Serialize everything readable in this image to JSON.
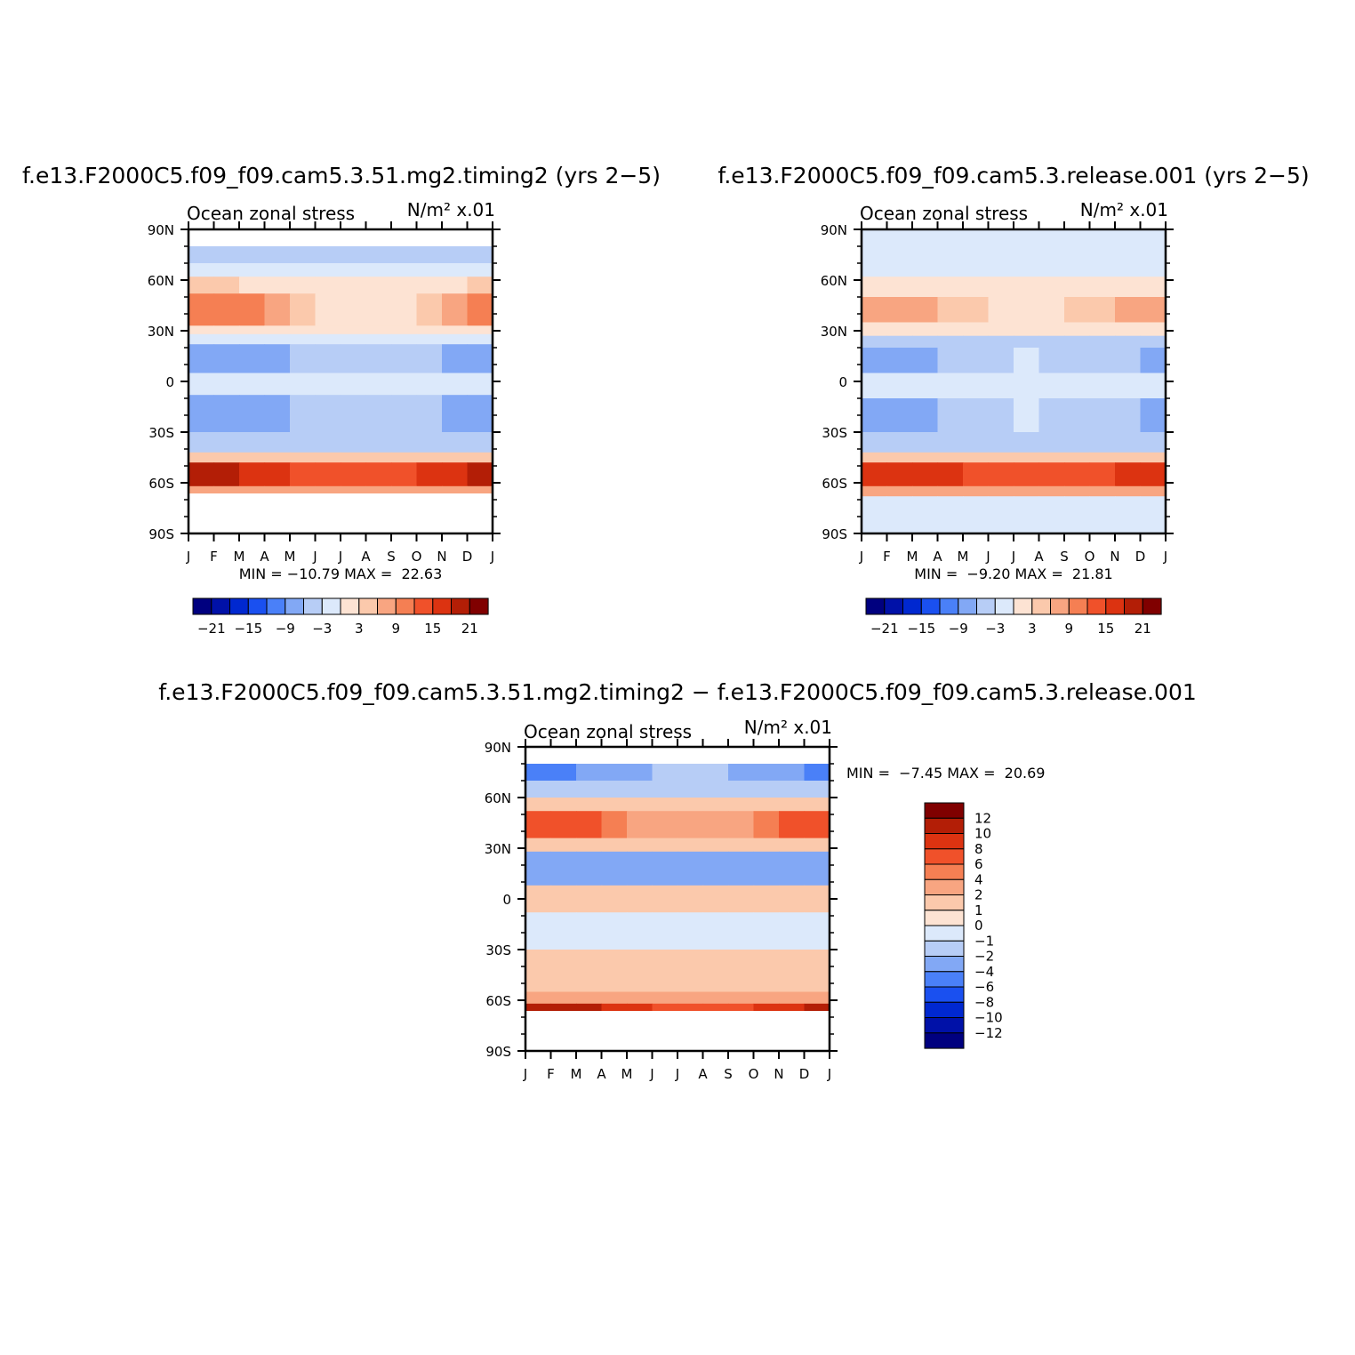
{
  "colors": {
    "abs_scale": [
      "#00007f",
      "#0011a8",
      "#0028d0",
      "#1a50f0",
      "#4a80f8",
      "#82a8f5",
      "#b7cdf6",
      "#dce9fb",
      "#fde3d3",
      "#fbc9ac",
      "#f8a581",
      "#f57f53",
      "#f0512a",
      "#dc3311",
      "#b31e06",
      "#800000"
    ],
    "diff_scale": [
      "#800000",
      "#b31e06",
      "#dc3311",
      "#f0512a",
      "#f57f53",
      "#f8a581",
      "#fbc9ac",
      "#fde3d3",
      "#dce9fb",
      "#b7cdf6",
      "#82a8f5",
      "#4a80f8",
      "#1a50f0",
      "#0028d0",
      "#0011a8",
      "#00007f"
    ]
  },
  "panels": [
    {
      "title": "f.e13.F2000C5.f09_f09.cam5.3.51.mg2.timing2 (yrs 2−5)",
      "left_label": "Ocean zonal stress",
      "right_label": "N/m² x.01",
      "stats": "MIN = −10.79 MAX =  22.63"
    },
    {
      "title": "f.e13.F2000C5.f09_f09.cam5.3.release.001 (yrs 2−5)",
      "left_label": "Ocean zonal stress",
      "right_label": "N/m² x.01",
      "stats": "MIN =  −9.20 MAX =  21.81"
    },
    {
      "title": "f.e13.F2000C5.f09_f09.cam5.3.51.mg2.timing2 − f.e13.F2000C5.f09_f09.cam5.3.release.001",
      "left_label": "Ocean zonal stress",
      "right_label": "N/m² x.01",
      "stats": "MIN =  −7.45 MAX =  20.69"
    }
  ],
  "chart_data": [
    {
      "type": "heatmap",
      "title": "f.e13.F2000C5.f09_f09.cam5.3.51.mg2.timing2 (yrs 2−5)",
      "x_ticks": [
        "J",
        "F",
        "M",
        "A",
        "M",
        "J",
        "J",
        "A",
        "S",
        "O",
        "N",
        "D",
        "J"
      ],
      "y_ticks": [
        "90N",
        "60N",
        "30N",
        "0",
        "30S",
        "60S",
        "90S"
      ],
      "ylim": [
        -90,
        90
      ],
      "min": -10.79,
      "max": 22.63,
      "colorbar_labels": [
        "−21",
        "−15",
        "−9",
        "−3",
        "3",
        "9",
        "15",
        "21"
      ],
      "bands": [
        {
          "lat": [
            70,
            80
          ],
          "value": -4,
          "seasonal": 0
        },
        {
          "lat": [
            62,
            70
          ],
          "value": -1,
          "seasonal": 1
        },
        {
          "lat": [
            52,
            62
          ],
          "value": 2,
          "seasonal": 2
        },
        {
          "lat": [
            33,
            52
          ],
          "value": 6,
          "seasonal": 8
        },
        {
          "lat": [
            28,
            33
          ],
          "value": 1,
          "seasonal": 0
        },
        {
          "lat": [
            22,
            28
          ],
          "value": -2,
          "seasonal": 0
        },
        {
          "lat": [
            5,
            22
          ],
          "value": -6,
          "seasonal": -4
        },
        {
          "lat": [
            -8,
            5
          ],
          "value": -1,
          "seasonal": 0
        },
        {
          "lat": [
            -30,
            -8
          ],
          "value": -6,
          "seasonal": -4
        },
        {
          "lat": [
            -42,
            -30
          ],
          "value": -3,
          "seasonal": 0
        },
        {
          "lat": [
            -48,
            -42
          ],
          "value": 6,
          "seasonal": 0
        },
        {
          "lat": [
            -62,
            -48
          ],
          "value": 16,
          "seasonal": 4
        },
        {
          "lat": [
            -66,
            -62
          ],
          "value": 8,
          "seasonal": 0
        }
      ]
    },
    {
      "type": "heatmap",
      "title": "f.e13.F2000C5.f09_f09.cam5.3.release.001 (yrs 2−5)",
      "x_ticks": [
        "J",
        "F",
        "M",
        "A",
        "M",
        "J",
        "J",
        "A",
        "S",
        "O",
        "N",
        "D",
        "J"
      ],
      "y_ticks": [
        "90N",
        "60N",
        "30N",
        "0",
        "30S",
        "60S",
        "90S"
      ],
      "ylim": [
        -90,
        90
      ],
      "min": -9.2,
      "max": 21.81,
      "colorbar_labels": [
        "−21",
        "−15",
        "−9",
        "−3",
        "3",
        "9",
        "15",
        "21"
      ],
      "bands": [
        {
          "lat": [
            75,
            90
          ],
          "value": -1,
          "seasonal": 0
        },
        {
          "lat": [
            62,
            75
          ],
          "value": -2,
          "seasonal": 0
        },
        {
          "lat": [
            50,
            62
          ],
          "value": 2,
          "seasonal": 1
        },
        {
          "lat": [
            35,
            50
          ],
          "value": 5,
          "seasonal": 4
        },
        {
          "lat": [
            27,
            35
          ],
          "value": 1,
          "seasonal": 0
        },
        {
          "lat": [
            20,
            27
          ],
          "value": -3,
          "seasonal": 0
        },
        {
          "lat": [
            5,
            20
          ],
          "value": -5,
          "seasonal": -3
        },
        {
          "lat": [
            -10,
            5
          ],
          "value": -1,
          "seasonal": 0
        },
        {
          "lat": [
            -30,
            -10
          ],
          "value": -5,
          "seasonal": -3
        },
        {
          "lat": [
            -42,
            -30
          ],
          "value": -3,
          "seasonal": 0
        },
        {
          "lat": [
            -48,
            -42
          ],
          "value": 6,
          "seasonal": 0
        },
        {
          "lat": [
            -62,
            -48
          ],
          "value": 15,
          "seasonal": 4
        },
        {
          "lat": [
            -68,
            -62
          ],
          "value": 7,
          "seasonal": 0
        },
        {
          "lat": [
            -90,
            -68
          ],
          "value": -1,
          "seasonal": 0
        }
      ]
    },
    {
      "type": "heatmap",
      "title": "f.e13.F2000C5.f09_f09.cam5.3.51.mg2.timing2 − f.e13.F2000C5.f09_f09.cam5.3.release.001",
      "x_ticks": [
        "J",
        "F",
        "M",
        "A",
        "M",
        "J",
        "J",
        "A",
        "S",
        "O",
        "N",
        "D",
        "J"
      ],
      "y_ticks": [
        "90N",
        "60N",
        "30N",
        "0",
        "30S",
        "60S",
        "90S"
      ],
      "ylim": [
        -90,
        90
      ],
      "min": -7.45,
      "max": 20.69,
      "colorbar_labels": [
        "12",
        "10",
        "8",
        "6",
        "4",
        "2",
        "1",
        "0",
        "−1",
        "−2",
        "−4",
        "−6",
        "−8",
        "−10",
        "−12"
      ],
      "bands": [
        {
          "lat": [
            70,
            80
          ],
          "value": -3,
          "seasonal": -2
        },
        {
          "lat": [
            60,
            70
          ],
          "value": -2,
          "seasonal": 0
        },
        {
          "lat": [
            52,
            60
          ],
          "value": 1,
          "seasonal": 0
        },
        {
          "lat": [
            36,
            52
          ],
          "value": 5,
          "seasonal": 4
        },
        {
          "lat": [
            28,
            36
          ],
          "value": 1,
          "seasonal": 0
        },
        {
          "lat": [
            8,
            28
          ],
          "value": -3,
          "seasonal": 0
        },
        {
          "lat": [
            -8,
            8
          ],
          "value": 1,
          "seasonal": 0
        },
        {
          "lat": [
            -30,
            -8
          ],
          "value": -1,
          "seasonal": 0
        },
        {
          "lat": [
            -55,
            -30
          ],
          "value": 1,
          "seasonal": 0
        },
        {
          "lat": [
            -62,
            -55
          ],
          "value": 2,
          "seasonal": 0
        },
        {
          "lat": [
            -66,
            -62
          ],
          "value": 9,
          "seasonal": 3
        }
      ]
    }
  ]
}
